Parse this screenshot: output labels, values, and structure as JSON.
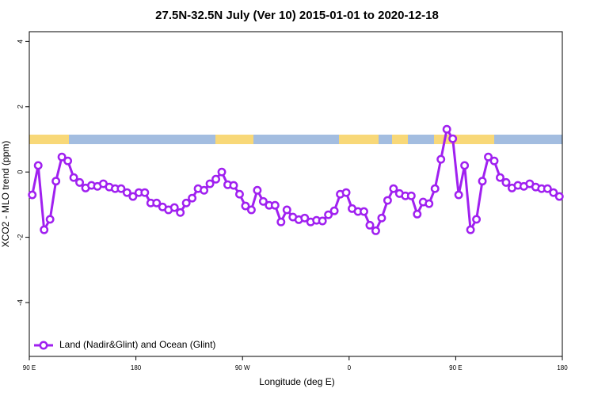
{
  "chart_data": {
    "type": "line",
    "title": "27.5N-32.5N July (Ver 10)   2015-01-01 to 2020-12-18",
    "x_label": "Longitude (deg E)",
    "y_label": "XCO2 - MLO trend (ppm)",
    "x": [
      92.5,
      97.5,
      102.5,
      107.5,
      112.5,
      117.5,
      122.5,
      127.5,
      132.5,
      137.5,
      142.5,
      147.5,
      152.5,
      157.5,
      162.5,
      167.5,
      172.5,
      177.5,
      182.5,
      187.5,
      192.5,
      197.5,
      202.5,
      207.5,
      212.5,
      217.5,
      222.5,
      227.5,
      232.5,
      237.5,
      242.5,
      247.5,
      252.5,
      257.5,
      262.5,
      267.5,
      272.5,
      277.5,
      282.5,
      287.5,
      292.5,
      297.5,
      302.5,
      307.5,
      312.5,
      317.5,
      322.5,
      327.5,
      332.5,
      337.5,
      342.5,
      347.5,
      352.5,
      357.5,
      362.5,
      367.5,
      372.5,
      377.5,
      382.5,
      387.5,
      392.5,
      397.5,
      402.5,
      407.5,
      412.5,
      417.5,
      422.5,
      427.5,
      432.5,
      437.5,
      442.5,
      447.5,
      452.5,
      457.5,
      462.5,
      467.5,
      472.5,
      477.5,
      482.5,
      487.5,
      492.5,
      497.5,
      502.5,
      507.5,
      512.5,
      517.5,
      522.5,
      527.5,
      532.5,
      537.5
    ],
    "series": [
      {
        "name": "Land (Nadir&Glint) and Ocean (Glint)",
        "color": "#a020f0",
        "values": [
          -0.7,
          0.2,
          -1.77,
          -1.45,
          -0.28,
          0.46,
          0.34,
          -0.17,
          -0.32,
          -0.49,
          -0.41,
          -0.44,
          -0.36,
          -0.46,
          -0.51,
          -0.51,
          -0.63,
          -0.75,
          -0.63,
          -0.63,
          -0.95,
          -0.95,
          -1.07,
          -1.16,
          -1.09,
          -1.24,
          -0.95,
          -0.8,
          -0.51,
          -0.56,
          -0.36,
          -0.22,
          0.0,
          -0.39,
          -0.41,
          -0.68,
          -1.04,
          -1.16,
          -0.56,
          -0.9,
          -1.02,
          -1.02,
          -1.53,
          -1.16,
          -1.38,
          -1.46,
          -1.41,
          -1.53,
          -1.48,
          -1.5,
          -1.31,
          -1.19,
          -0.68,
          -0.63,
          -1.12,
          -1.21,
          -1.21,
          -1.63,
          -1.8,
          -1.41,
          -0.87,
          -0.51,
          -0.66,
          -0.73,
          -0.73,
          -1.29,
          -0.92,
          -0.97,
          -0.51,
          0.39,
          1.31,
          1.02,
          -0.7,
          0.2,
          -1.77,
          -1.45,
          -0.28,
          0.46,
          0.34,
          -0.17,
          -0.32,
          -0.49,
          -0.41,
          -0.44,
          -0.36,
          -0.46,
          -0.51,
          -0.51,
          -0.63,
          -0.75
        ]
      }
    ],
    "xlim": [
      90,
      540
    ],
    "xticks": [
      {
        "value": 90,
        "label": "90 E"
      },
      {
        "value": 180,
        "label": "180"
      },
      {
        "value": 270,
        "label": "90 W"
      },
      {
        "value": 360,
        "label": "0"
      },
      {
        "value": 450,
        "label": "90 E"
      },
      {
        "value": 540,
        "label": "180"
      }
    ],
    "ylim": [
      -5.65,
      4.3
    ],
    "yticks": [
      -4,
      -2,
      0,
      2,
      4
    ],
    "legend": "bottom-left"
  }
}
